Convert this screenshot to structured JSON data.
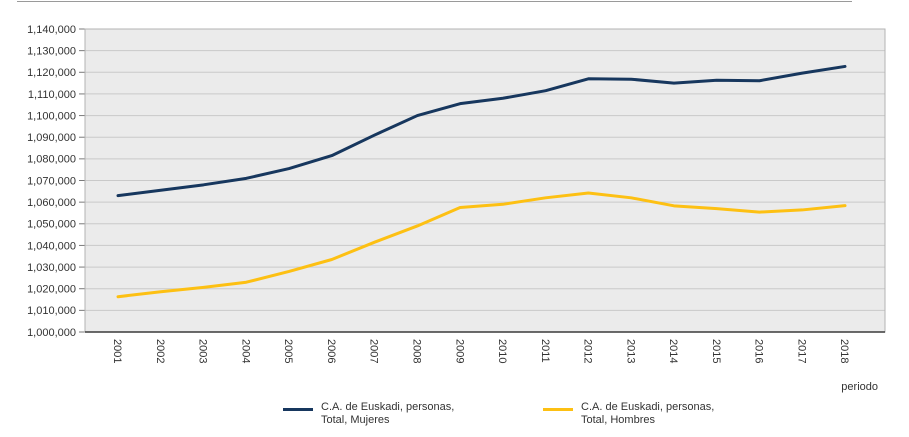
{
  "chart_data": {
    "type": "line",
    "x": [
      "2001",
      "2002",
      "2003",
      "2004",
      "2005",
      "2006",
      "2007",
      "2008",
      "2009",
      "2010",
      "2011",
      "2012",
      "2013",
      "2014",
      "2015",
      "2016",
      "2017",
      "2018"
    ],
    "series": [
      {
        "name": "C.A. de Euskadi, personas, Total, Mujeres",
        "color": "#17375e",
        "values": [
          1063000,
          1065500,
          1068000,
          1071000,
          1075500,
          1081500,
          1091000,
          1100000,
          1105500,
          1108000,
          1111500,
          1117000,
          1116800,
          1115000,
          1116300,
          1116100,
          1119600,
          1122700
        ]
      },
      {
        "name": "C.A. de Euskadi, personas, Total, Hombres",
        "color": "#fdc013",
        "values": [
          1016300,
          1018600,
          1020600,
          1023000,
          1028000,
          1033500,
          1041500,
          1049000,
          1057500,
          1059000,
          1062000,
          1064200,
          1062000,
          1058300,
          1057000,
          1055400,
          1056400,
          1058400
        ]
      }
    ],
    "xlabel": "periodo",
    "ylabel": "",
    "ylim": [
      1000000,
      1140000
    ],
    "ytick_step": 10000,
    "grid": true,
    "legend_position": "bottom",
    "plot_bg": "#ebebeb",
    "grid_color": "#c9c9c9",
    "plot_border_color": "#b3b3b3",
    "axis_color": "#3a3a3a",
    "tick_color": "#7a7a7a",
    "text_color": "#333333"
  },
  "legend": {
    "entries": [
      {
        "line1": "C.A. de Euskadi, personas,",
        "line2": "Total, Mujeres"
      },
      {
        "line1": "C.A. de Euskadi, personas,",
        "line2": "Total, Hombres"
      }
    ]
  }
}
